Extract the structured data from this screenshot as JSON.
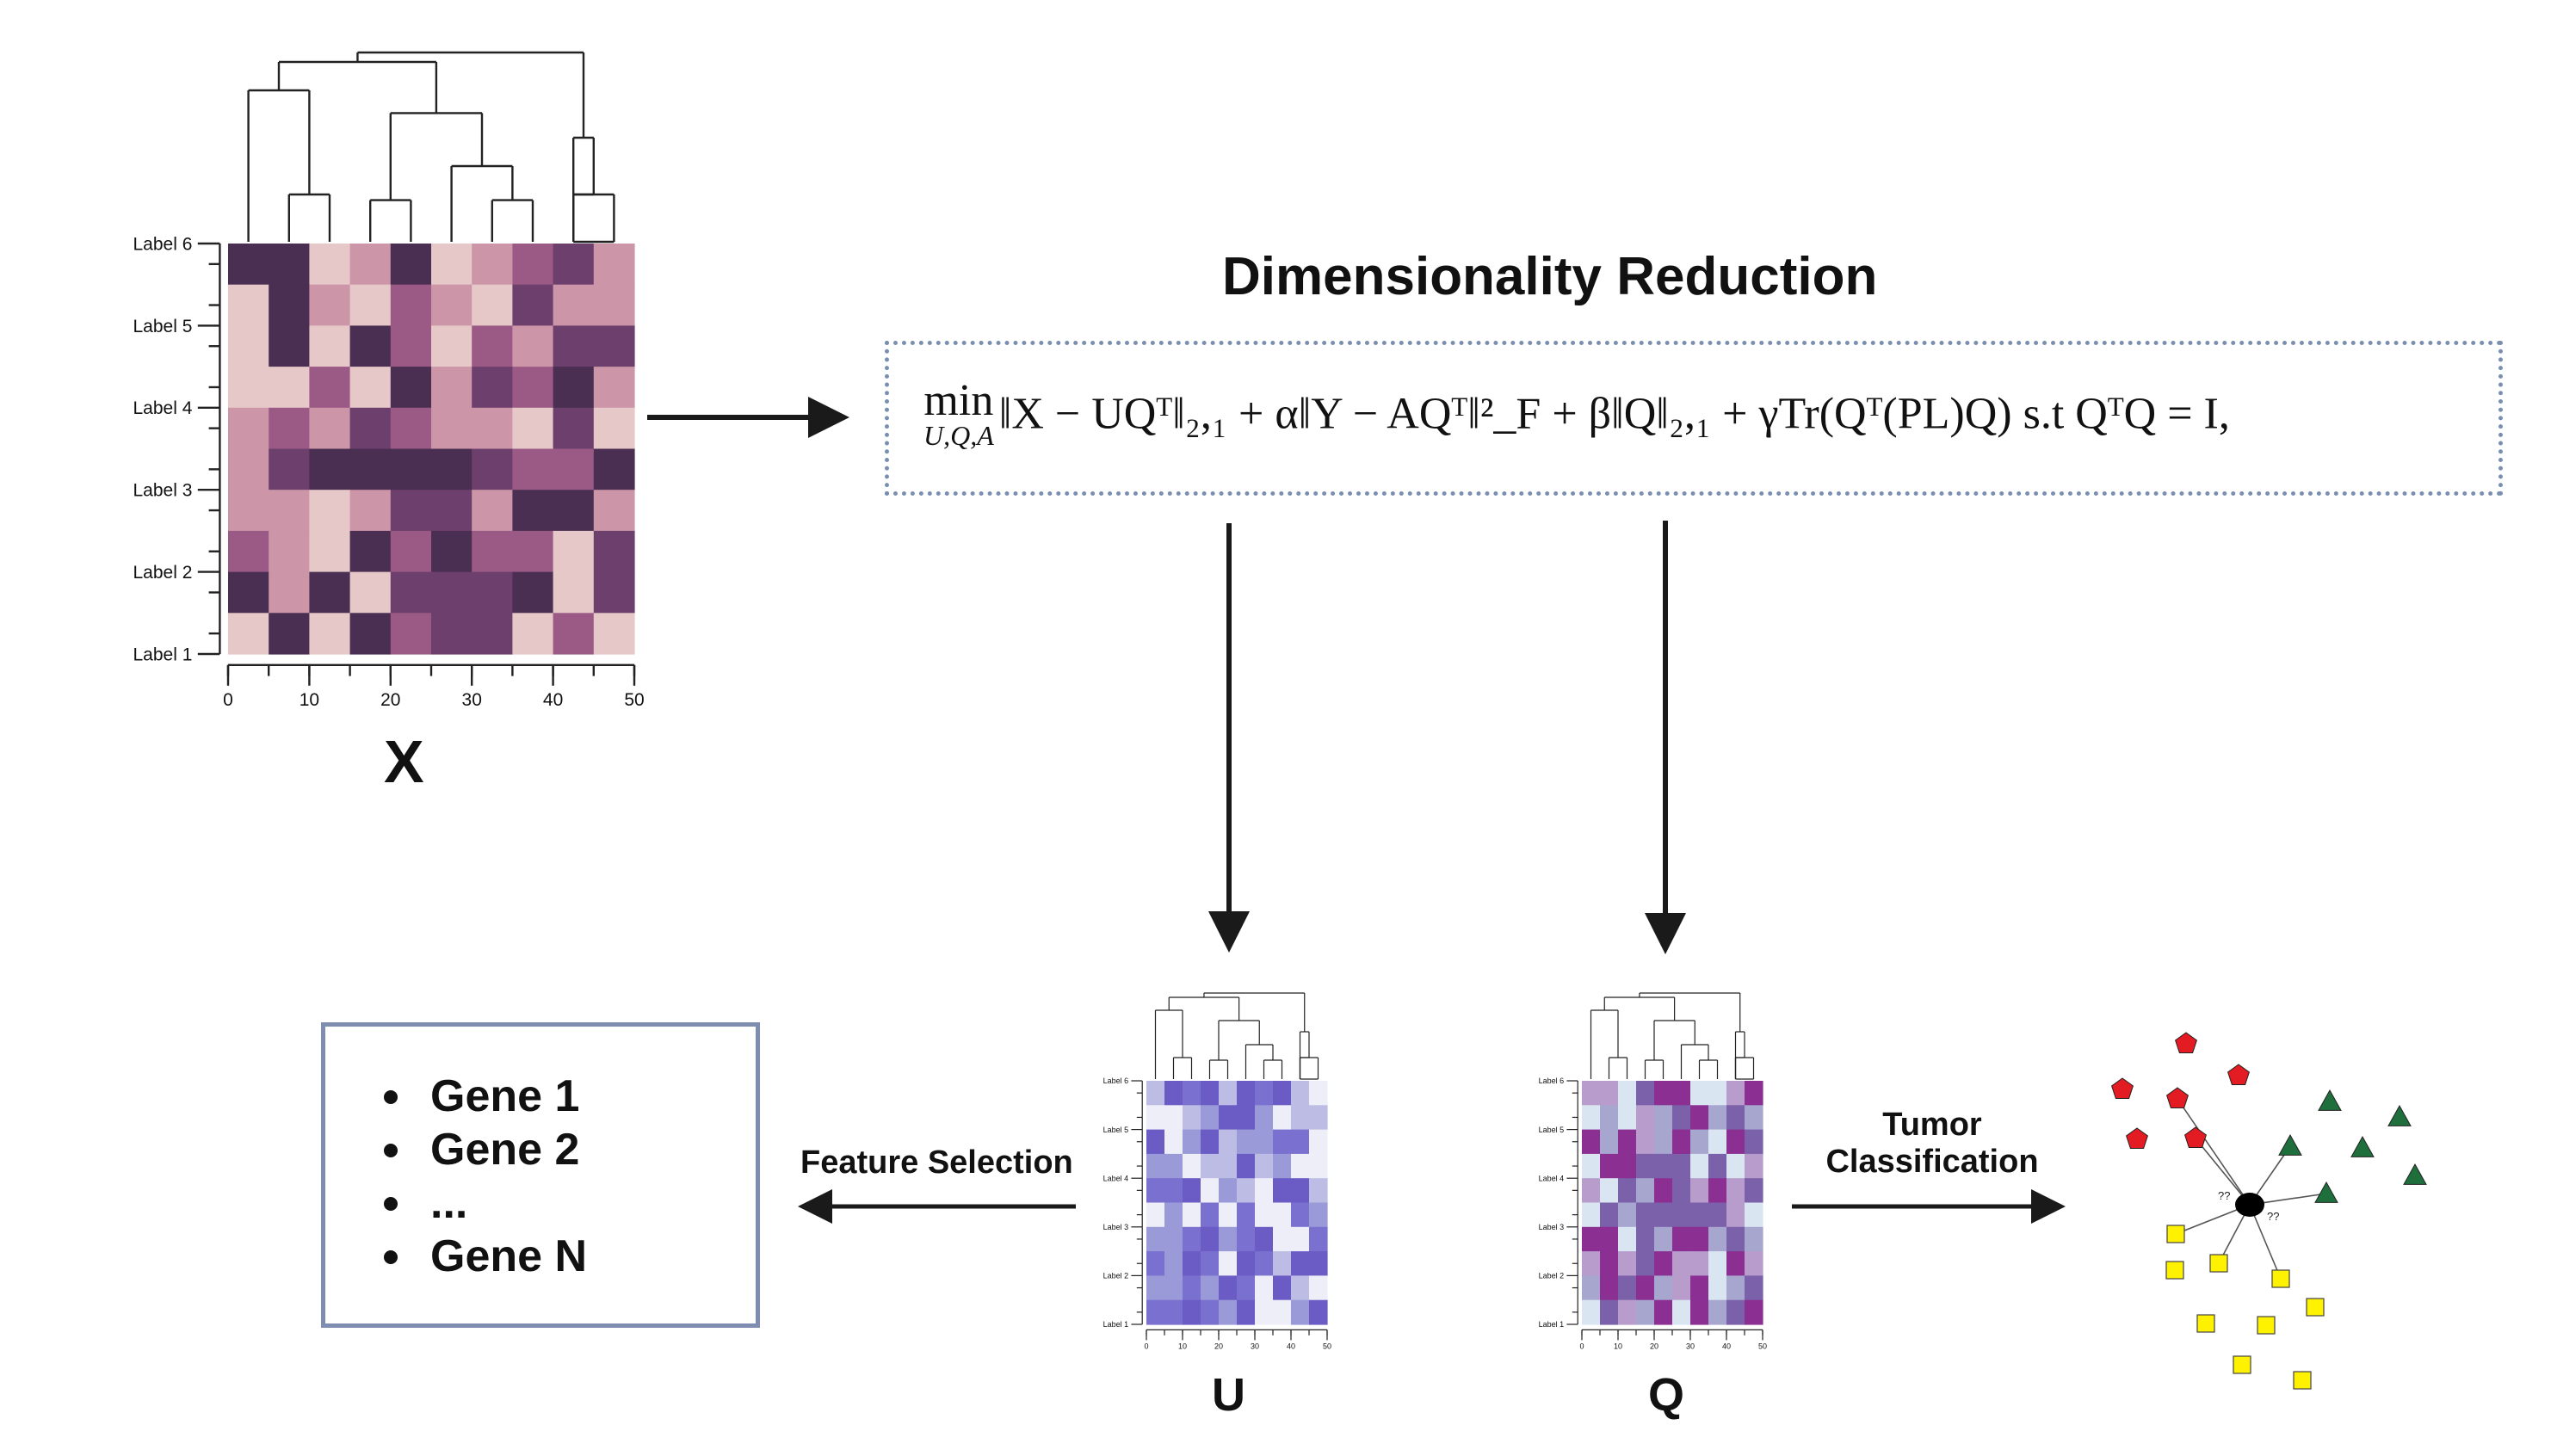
{
  "title": "Dimensionality Reduction",
  "formula": {
    "min_operator": "min",
    "min_subscript": "U,Q,A",
    "expression": "‖X − UQᵀ‖₂,₁ + α‖Y − AQᵀ‖²_F + β‖Q‖₂,₁ + γTr(Qᵀ(PL)Q) s.t QᵀQ = I,"
  },
  "matrices": {
    "x": {
      "label": "X",
      "row_labels": [
        "Label 6",
        "Label 5",
        "Label 4",
        "Label 3",
        "Label 2",
        "Label 1"
      ],
      "x_ticks": [
        "0",
        "10",
        "20",
        "30",
        "40",
        "50"
      ]
    },
    "u": {
      "label": "U",
      "row_labels": [
        "Label 6",
        "Label 5",
        "Label 4",
        "Label 3",
        "Label 2",
        "Label 1"
      ],
      "x_ticks": [
        "0",
        "10",
        "20",
        "30",
        "40",
        "50"
      ]
    },
    "q": {
      "label": "Q",
      "row_labels": [
        "Label 6",
        "Label 5",
        "Label 4",
        "Label 3",
        "Label 2",
        "Label 1"
      ],
      "x_ticks": [
        "0",
        "10",
        "20",
        "30",
        "40",
        "50"
      ]
    }
  },
  "feature_selection": {
    "label": "Feature Selection"
  },
  "tumor_classification": {
    "label_line1": "Tumor",
    "label_line2": "Classification"
  },
  "genes": [
    "Gene 1",
    "Gene 2",
    "...",
    "Gene N"
  ],
  "classifier": {
    "query_labels": [
      "??",
      "??"
    ]
  },
  "colors": {
    "x_palette": [
      "#e6c8c8",
      "#cc95a8",
      "#9b5a85",
      "#6d3f6c",
      "#4a2f52"
    ],
    "u_palette": [
      "#eeeef8",
      "#bcbce4",
      "#9a9ad8",
      "#7a70d0",
      "#6a5cc4"
    ],
    "q_palette": [
      "#d9e6f2",
      "#a7a6cf",
      "#7b60aa",
      "#8b2f93",
      "#b79ccc"
    ],
    "pentagon": "#e31b23",
    "triangle": "#1e6f3c",
    "square": "#fff200",
    "border": "#7f8db0"
  }
}
